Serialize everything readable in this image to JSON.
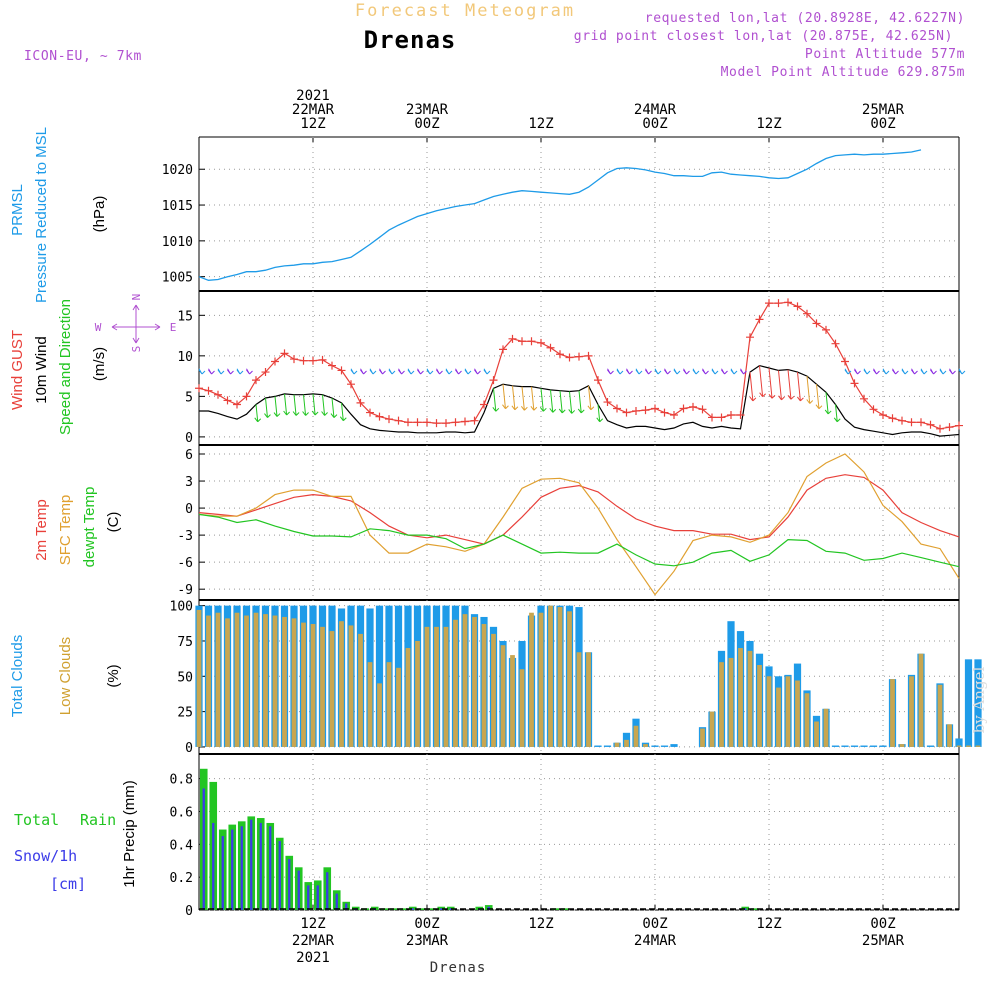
{
  "header": {
    "title_top": "Forecast Meteogram",
    "station": "Drenas",
    "model": "ICON-EU, ~ 7km",
    "info_lines": [
      "requested lon,lat (20.8928E, 42.6227N)",
      "grid point closest lon,lat (20.875E, 42.625N)",
      "Point Altitude 577m",
      "Model Point Altitude 629.875m"
    ]
  },
  "footer_station": "Drenas",
  "watermark": "by Angel",
  "colors": {
    "pressure": "#1e9be8",
    "gust": "#e8403a",
    "wind": "#000000",
    "temp2m": "#e8403a",
    "sfc": "#e0a030",
    "dewpt": "#22c522",
    "total_clouds": "#1e9be8",
    "low_clouds": "#c8a650",
    "rain": "#22c522",
    "snow": "#3b3be8",
    "header": "#b050d0",
    "title_top": "#f2c87a"
  },
  "time_axis": {
    "top_labels": [
      {
        "lines": [
          "2021",
          "22MAR",
          "12Z"
        ],
        "hour": 12
      },
      {
        "lines": [
          "23MAR",
          "00Z"
        ],
        "hour": 24
      },
      {
        "lines": [
          "12Z"
        ],
        "hour": 36
      },
      {
        "lines": [
          "24MAR",
          "00Z"
        ],
        "hour": 48
      },
      {
        "lines": [
          "12Z"
        ],
        "hour": 60
      },
      {
        "lines": [
          "25MAR",
          "00Z"
        ],
        "hour": 72
      }
    ],
    "bottom_labels": [
      {
        "lines": [
          "12Z",
          "22MAR",
          "2021"
        ],
        "hour": 12
      },
      {
        "lines": [
          "00Z",
          "23MAR"
        ],
        "hour": 24
      },
      {
        "lines": [
          "12Z"
        ],
        "hour": 36
      },
      {
        "lines": [
          "00Z",
          "24MAR"
        ],
        "hour": 48
      },
      {
        "lines": [
          "12Z"
        ],
        "hour": 60
      },
      {
        "lines": [
          "00Z",
          "25MAR"
        ],
        "hour": 72
      }
    ]
  },
  "panel_labels": {
    "pressure": [
      "PRMSL",
      "Pressure Reduced to MSL",
      "(hPa)"
    ],
    "wind": [
      "Wind GUST",
      "10m Wind",
      "Speed and Direction",
      "(m/s)"
    ],
    "compass": {
      "n": "N",
      "s": "S",
      "w": "W",
      "e": "E"
    },
    "temp": [
      "2m Temp",
      "SFC Temp",
      "dewpt Temp",
      "(C)"
    ],
    "clouds": [
      "Total Clouds",
      "Low Clouds",
      "(%)"
    ],
    "precip": [
      "Total",
      "Rain",
      "Snow/1h",
      "[cm]",
      "1hr Precip (mm)"
    ]
  },
  "chart_data": [
    {
      "type": "line",
      "name": "pressure",
      "x_start_hour": 0,
      "x_step_hours": 1,
      "ylim": [
        1003,
        1024.5
      ],
      "yticks": [
        1005,
        1010,
        1015,
        1020
      ],
      "series": [
        {
          "name": "PRMSL",
          "values": [
            1005.0,
            1004.5,
            1004.6,
            1005.0,
            1005.3,
            1005.7,
            1005.7,
            1005.9,
            1006.3,
            1006.5,
            1006.6,
            1006.8,
            1006.8,
            1007.0,
            1007.1,
            1007.4,
            1007.7,
            1008.6,
            1009.5,
            1010.5,
            1011.5,
            1012.2,
            1012.8,
            1013.4,
            1013.8,
            1014.2,
            1014.5,
            1014.8,
            1015.0,
            1015.2,
            1015.7,
            1016.2,
            1016.5,
            1016.8,
            1017.0,
            1016.9,
            1016.8,
            1016.7,
            1016.6,
            1016.5,
            1016.8,
            1017.5,
            1018.5,
            1019.5,
            1020.1,
            1020.2,
            1020.1,
            1019.9,
            1019.6,
            1019.4,
            1019.1,
            1019.1,
            1019.0,
            1019.0,
            1019.5,
            1019.6,
            1019.3,
            1019.2,
            1019.1,
            1019.0,
            1018.8,
            1018.7,
            1018.8,
            1019.4,
            1020.0,
            1020.8,
            1021.5,
            1021.9,
            1022.0,
            1022.1,
            1022.0,
            1022.1,
            1022.1,
            1022.2,
            1022.3,
            1022.4,
            1022.7
          ]
        }
      ]
    },
    {
      "type": "line",
      "name": "wind",
      "x_start_hour": 0,
      "x_step_hours": 1,
      "ylim": [
        -1,
        18
      ],
      "yticks": [
        0,
        5,
        10,
        15
      ],
      "series": [
        {
          "name": "Wind GUST",
          "values": [
            6.0,
            5.7,
            5.2,
            4.5,
            4.0,
            5.0,
            7.0,
            8.0,
            9.3,
            10.3,
            9.6,
            9.4,
            9.4,
            9.5,
            8.8,
            8.2,
            6.5,
            4.2,
            3.0,
            2.5,
            2.2,
            2.0,
            1.8,
            1.8,
            1.8,
            1.7,
            1.7,
            1.8,
            1.9,
            2.0,
            4.0,
            7.0,
            10.8,
            12.1,
            11.8,
            11.8,
            11.6,
            11.0,
            10.2,
            9.8,
            9.9,
            10.0,
            7.0,
            4.3,
            3.5,
            3.0,
            3.2,
            3.3,
            3.5,
            3.0,
            2.7,
            3.5,
            3.7,
            3.4,
            2.4,
            2.4,
            2.7,
            2.7,
            12.3,
            14.5,
            16.5,
            16.5,
            16.6,
            16.1,
            15.2,
            14.0,
            13.2,
            11.5,
            9.3,
            6.6,
            4.7,
            3.4,
            2.7,
            2.3,
            2.0,
            1.8,
            1.8,
            1.5,
            1.0,
            1.2,
            1.4
          ]
        },
        {
          "name": "10m Wind",
          "values": [
            3.2,
            3.2,
            2.9,
            2.5,
            2.2,
            2.8,
            4.0,
            4.8,
            5.0,
            5.3,
            5.2,
            5.2,
            5.3,
            5.2,
            4.8,
            4.2,
            2.8,
            1.5,
            1.0,
            0.8,
            0.7,
            0.6,
            0.6,
            0.5,
            0.5,
            0.5,
            0.6,
            0.6,
            0.5,
            0.6,
            3.0,
            6.0,
            6.5,
            6.3,
            6.2,
            6.2,
            6.0,
            5.8,
            5.7,
            5.6,
            5.7,
            6.3,
            4.0,
            2.0,
            1.5,
            1.1,
            1.3,
            1.3,
            1.1,
            0.9,
            1.1,
            1.6,
            1.8,
            1.3,
            1.1,
            1.3,
            1.1,
            1.0,
            8.0,
            8.8,
            8.5,
            8.2,
            8.3,
            8.0,
            7.5,
            6.5,
            5.5,
            4.0,
            2.2,
            1.2,
            0.9,
            0.7,
            0.5,
            0.3,
            0.5,
            0.6,
            0.6,
            0.4,
            0.1,
            0.2,
            0.3
          ]
        }
      ]
    },
    {
      "type": "line",
      "name": "temperature",
      "x_start_hour": 0,
      "x_step_hours": 2,
      "ylim": [
        -10.2,
        7
      ],
      "yticks": [
        -9,
        -6,
        -3,
        0,
        3,
        6
      ],
      "series": [
        {
          "name": "2m Temp",
          "values": [
            -0.5,
            -0.7,
            -0.9,
            -0.2,
            0.5,
            1.2,
            1.5,
            1.3,
            0.8,
            -0.5,
            -2.0,
            -3.0,
            -3.3,
            -3.0,
            -3.5,
            -4.0,
            -3.0,
            -1.0,
            1.2,
            2.2,
            2.5,
            1.8,
            0.2,
            -1.2,
            -2.0,
            -2.5,
            -2.5,
            -2.9,
            -2.9,
            -3.5,
            -3.2,
            -1.0,
            2.0,
            3.3,
            3.7,
            3.4,
            2.0,
            -0.5,
            -1.6,
            -2.5,
            -3.2
          ]
        },
        {
          "name": "SFC Temp",
          "values": [
            -0.7,
            -0.9,
            -0.9,
            0.0,
            1.5,
            2.0,
            2.0,
            1.3,
            1.3,
            -3.0,
            -5.0,
            -5.0,
            -4.0,
            -4.3,
            -4.8,
            -4.0,
            -1.0,
            2.2,
            3.2,
            3.3,
            2.8,
            0.0,
            -3.5,
            -6.5,
            -9.6,
            -7.0,
            -3.6,
            -3.0,
            -3.2,
            -3.8,
            -3.0,
            -0.5,
            3.5,
            5.0,
            6.0,
            4.0,
            0.3,
            -1.5,
            -4.0,
            -4.5,
            -7.8
          ]
        },
        {
          "name": "dewpt Temp",
          "values": [
            -0.7,
            -1.0,
            -1.6,
            -1.3,
            -2.0,
            -2.6,
            -3.1,
            -3.1,
            -3.2,
            -2.3,
            -2.5,
            -3.0,
            -3.0,
            -3.4,
            -4.5,
            -4.0,
            -3.0,
            -4.0,
            -5.0,
            -4.9,
            -5.0,
            -5.0,
            -4.0,
            -5.2,
            -6.2,
            -6.4,
            -6.0,
            -5.0,
            -4.7,
            -5.9,
            -5.2,
            -3.5,
            -3.6,
            -4.8,
            -5.0,
            -5.8,
            -5.6,
            -5.0,
            -5.5,
            -6.0,
            -6.5
          ]
        }
      ]
    },
    {
      "type": "bar",
      "name": "clouds",
      "x_start_hour": 0,
      "x_step_hours": 1,
      "ylim": [
        -5,
        104
      ],
      "yticks": [
        0,
        25,
        50,
        75,
        100
      ],
      "series": [
        {
          "name": "Total Clouds",
          "values": [
            100,
            100,
            100,
            100,
            100,
            100,
            100,
            100,
            100,
            100,
            100,
            100,
            100,
            100,
            100,
            98,
            100,
            100,
            98,
            100,
            100,
            100,
            100,
            100,
            100,
            100,
            100,
            100,
            100,
            94,
            92,
            85,
            75,
            63,
            75,
            93,
            100,
            100,
            100,
            100,
            99,
            67,
            1,
            1,
            3,
            10,
            20,
            3,
            1,
            1,
            2,
            0,
            0,
            14,
            25,
            68,
            89,
            82,
            75,
            66,
            57,
            50,
            51,
            59,
            40,
            22,
            27,
            1,
            1,
            1,
            1,
            1,
            1,
            48,
            2,
            51,
            66,
            1,
            45,
            16,
            6,
            62,
            62
          ]
        },
        {
          "name": "Low Clouds",
          "values": [
            97,
            93,
            95,
            91,
            95,
            93,
            95,
            94,
            93,
            92,
            91,
            88,
            87,
            85,
            82,
            89,
            86,
            80,
            60,
            45,
            60,
            56,
            70,
            75,
            85,
            85,
            85,
            90,
            94,
            92,
            87,
            80,
            72,
            65,
            55,
            95,
            95,
            100,
            99,
            96,
            67,
            67,
            0,
            0,
            3,
            5,
            15,
            2,
            0,
            0,
            0,
            0,
            0,
            13,
            25,
            60,
            63,
            70,
            68,
            58,
            50,
            42,
            50,
            47,
            38,
            18,
            27,
            0,
            0,
            0,
            0,
            0,
            0,
            48,
            2,
            50,
            66,
            0,
            44,
            16,
            1,
            1,
            1
          ]
        }
      ]
    },
    {
      "type": "bar",
      "name": "precipitation",
      "x_start_hour": 0,
      "x_step_hours": 1,
      "ylim": [
        0,
        0.95
      ],
      "yticks": [
        0,
        0.2,
        0.4,
        0.6,
        0.8
      ],
      "series": [
        {
          "name": "Total Rain",
          "values": [
            0.86,
            0.78,
            0.49,
            0.52,
            0.54,
            0.57,
            0.56,
            0.53,
            0.44,
            0.33,
            0.26,
            0.17,
            0.18,
            0.26,
            0.12,
            0.05,
            0.02,
            0.01,
            0.02,
            0.01,
            0.01,
            0.01,
            0.02,
            0.01,
            0.01,
            0.02,
            0.02,
            0,
            0,
            0.02,
            0.03,
            0,
            0,
            0,
            0,
            0,
            0,
            0.01,
            0.01,
            0,
            0,
            0,
            0,
            0,
            0,
            0,
            0,
            0,
            0,
            0,
            0,
            0,
            0,
            0,
            0,
            0,
            0,
            0.02,
            0.01,
            0,
            0,
            0,
            0,
            0,
            0,
            0,
            0,
            0,
            0,
            0,
            0,
            0,
            0,
            0,
            0,
            0,
            0,
            0,
            0,
            0,
            0
          ]
        },
        {
          "name": "Snow/1h",
          "values": [
            0.74,
            0.53,
            0.45,
            0.49,
            0.51,
            0.55,
            0.53,
            0.51,
            0.42,
            0.31,
            0.24,
            0.15,
            0.15,
            0.23,
            0.1,
            0.04,
            0.01,
            0,
            0.01,
            0,
            0,
            0,
            0.01,
            0,
            0,
            0.01,
            0.01,
            0,
            0,
            0.01,
            0.02,
            0,
            0,
            0,
            0,
            0,
            0,
            0,
            0,
            0,
            0,
            0,
            0,
            0,
            0,
            0,
            0,
            0,
            0,
            0,
            0,
            0,
            0,
            0,
            0,
            0,
            0,
            0.01,
            0,
            0,
            0,
            0,
            0,
            0,
            0,
            0,
            0,
            0,
            0,
            0,
            0,
            0,
            0,
            0,
            0,
            0,
            0,
            0,
            0,
            0,
            0
          ]
        }
      ]
    }
  ]
}
